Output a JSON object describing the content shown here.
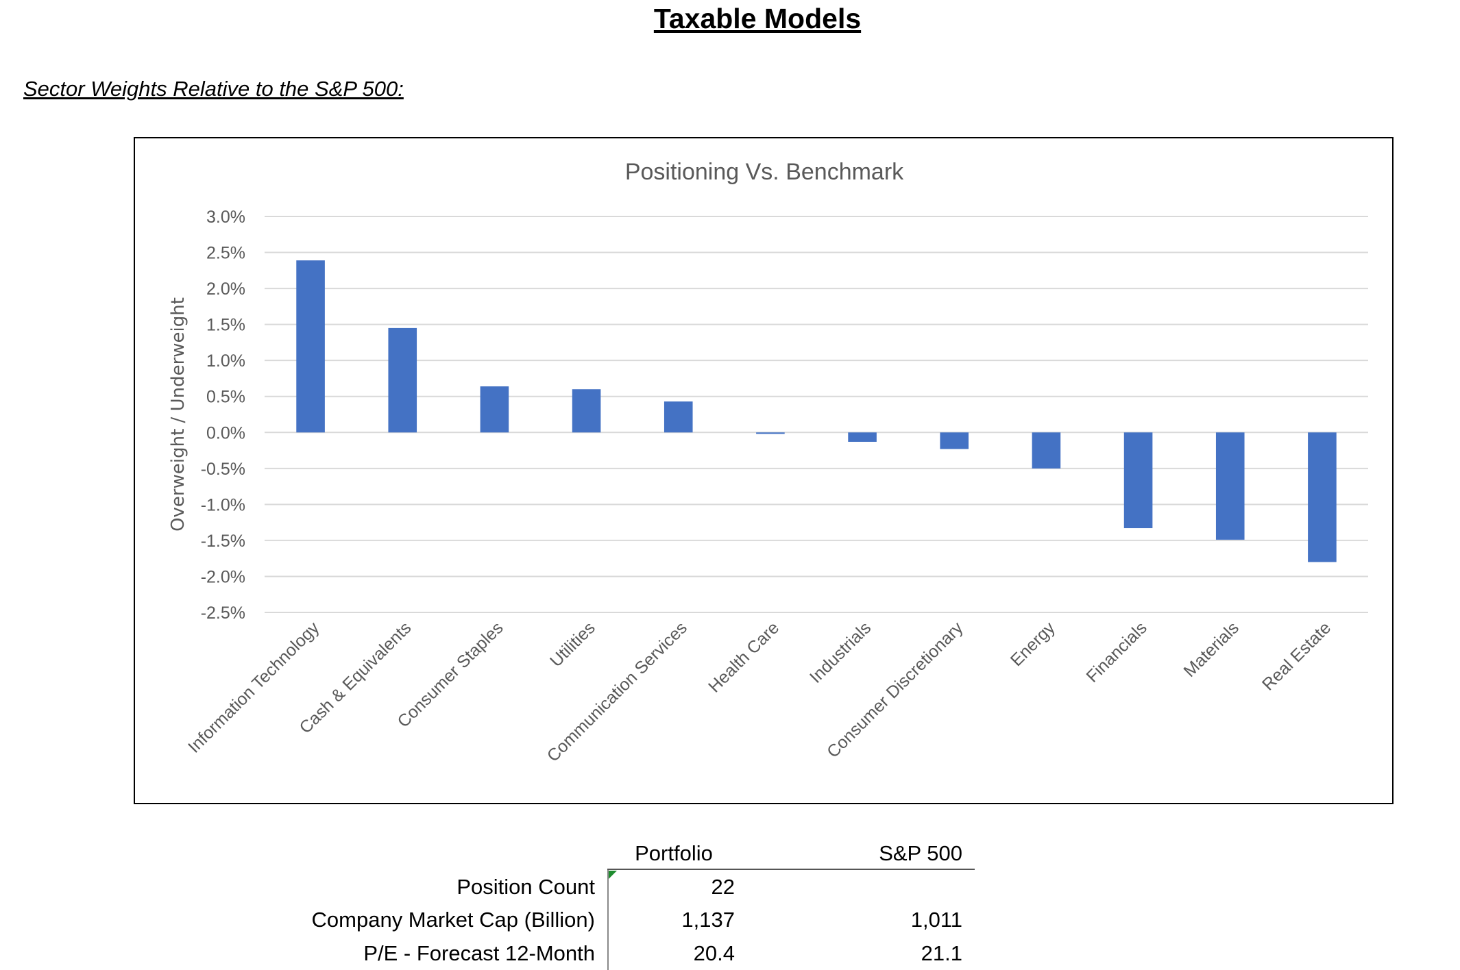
{
  "page_title": "Taxable Models",
  "section_title": "Sector Weights Relative to the S&P 500:",
  "chart_data": {
    "type": "bar",
    "title": "Positioning Vs. Benchmark",
    "xlabel": "",
    "ylabel": "Overweight / Underweight",
    "ylim": [
      -2.5,
      3.0
    ],
    "yticks": [
      "3.0%",
      "2.5%",
      "2.0%",
      "1.5%",
      "1.0%",
      "0.5%",
      "0.0%",
      "-0.5%",
      "-1.0%",
      "-1.5%",
      "-2.0%",
      "-2.5%"
    ],
    "grid": true,
    "categories": [
      "Information Technology",
      "Cash & Equivalents",
      "Consumer Staples",
      "Utilities",
      "Communication Services",
      "Health Care",
      "Industrials",
      "Consumer Discretionary",
      "Energy",
      "Financials",
      "Materials",
      "Real Estate"
    ],
    "values": [
      2.39,
      1.45,
      0.64,
      0.6,
      0.43,
      -0.02,
      -0.13,
      -0.23,
      -0.5,
      -1.33,
      -1.49,
      -1.8
    ],
    "unit": "%",
    "bar_color": "#4472C4"
  },
  "stats_table": {
    "columns": [
      "Portfolio",
      "S&P 500"
    ],
    "rows": [
      {
        "label": "Position Count",
        "portfolio": "22",
        "sp500": ""
      },
      {
        "label": "Company Market Cap (Billion)",
        "portfolio": "1,137",
        "sp500": "1,011"
      },
      {
        "label": "P/E - Forecast 12-Month",
        "portfolio": "20.4",
        "sp500": "21.1"
      }
    ]
  }
}
